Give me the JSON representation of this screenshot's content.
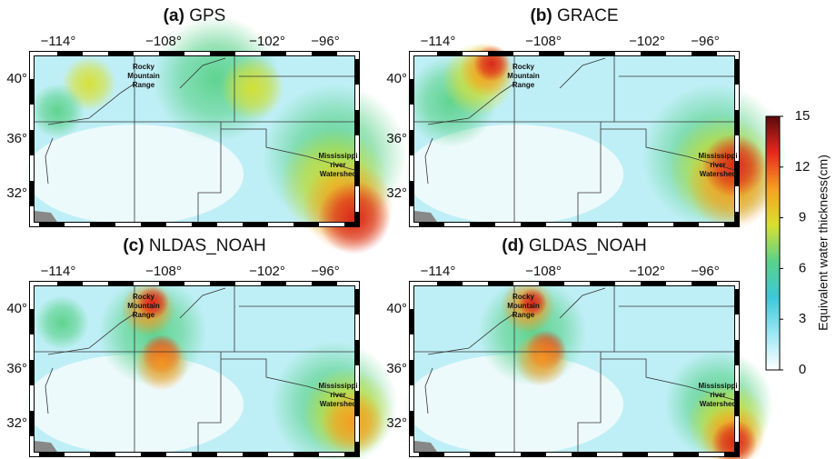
{
  "panels": [
    {
      "label": "(a)",
      "name": "GPS",
      "lon_labels": [
        "−114°",
        "−108°",
        "−102°",
        "−96°"
      ],
      "lat_labels": [
        "40°",
        "36°",
        "32°"
      ],
      "annotations": [
        [
          "Rocky",
          "Mountain",
          "Range"
        ],
        [
          "Mississippi",
          "river",
          "Watershed"
        ]
      ]
    },
    {
      "label": "(b)",
      "name": "GRACE",
      "lon_labels": [
        "−114°",
        "−108°",
        "−102°",
        "−96°"
      ],
      "lat_labels": [
        "40°",
        "36°",
        "32°"
      ],
      "annotations": [
        [
          "Rocky",
          "Mountain",
          "Range"
        ],
        [
          "Mississippi",
          "river",
          "Watershed"
        ]
      ]
    },
    {
      "label": "(c)",
      "name": "NLDAS_NOAH",
      "lon_labels": [
        "−114°",
        "−108°",
        "−102°",
        "−96°"
      ],
      "lat_labels": [
        "40°",
        "36°",
        "32°"
      ],
      "annotations": [
        [
          "Rocky",
          "Mountain",
          "Range"
        ],
        [
          "Mississippi",
          "river",
          "Watershed"
        ]
      ]
    },
    {
      "label": "(d)",
      "name": "GLDAS_NOAH",
      "lon_labels": [
        "−114°",
        "−108°",
        "−102°",
        "−96°"
      ],
      "lat_labels": [
        "40°",
        "36°",
        "32°"
      ],
      "annotations": [
        [
          "Rocky",
          "Mountain",
          "Range"
        ],
        [
          "Mississippi",
          "river",
          "Watershed"
        ]
      ]
    }
  ],
  "colorbar": {
    "label": "Equivalent water thickness(cm)",
    "lim": [
      0,
      15
    ],
    "ticks": [
      0,
      3,
      6,
      9,
      12,
      15
    ],
    "colors": [
      "#ffffff",
      "#9be8f5",
      "#3cc8d8",
      "#5ad28a",
      "#d8e030",
      "#f7a020",
      "#e8281e",
      "#5a0a0a"
    ]
  }
}
